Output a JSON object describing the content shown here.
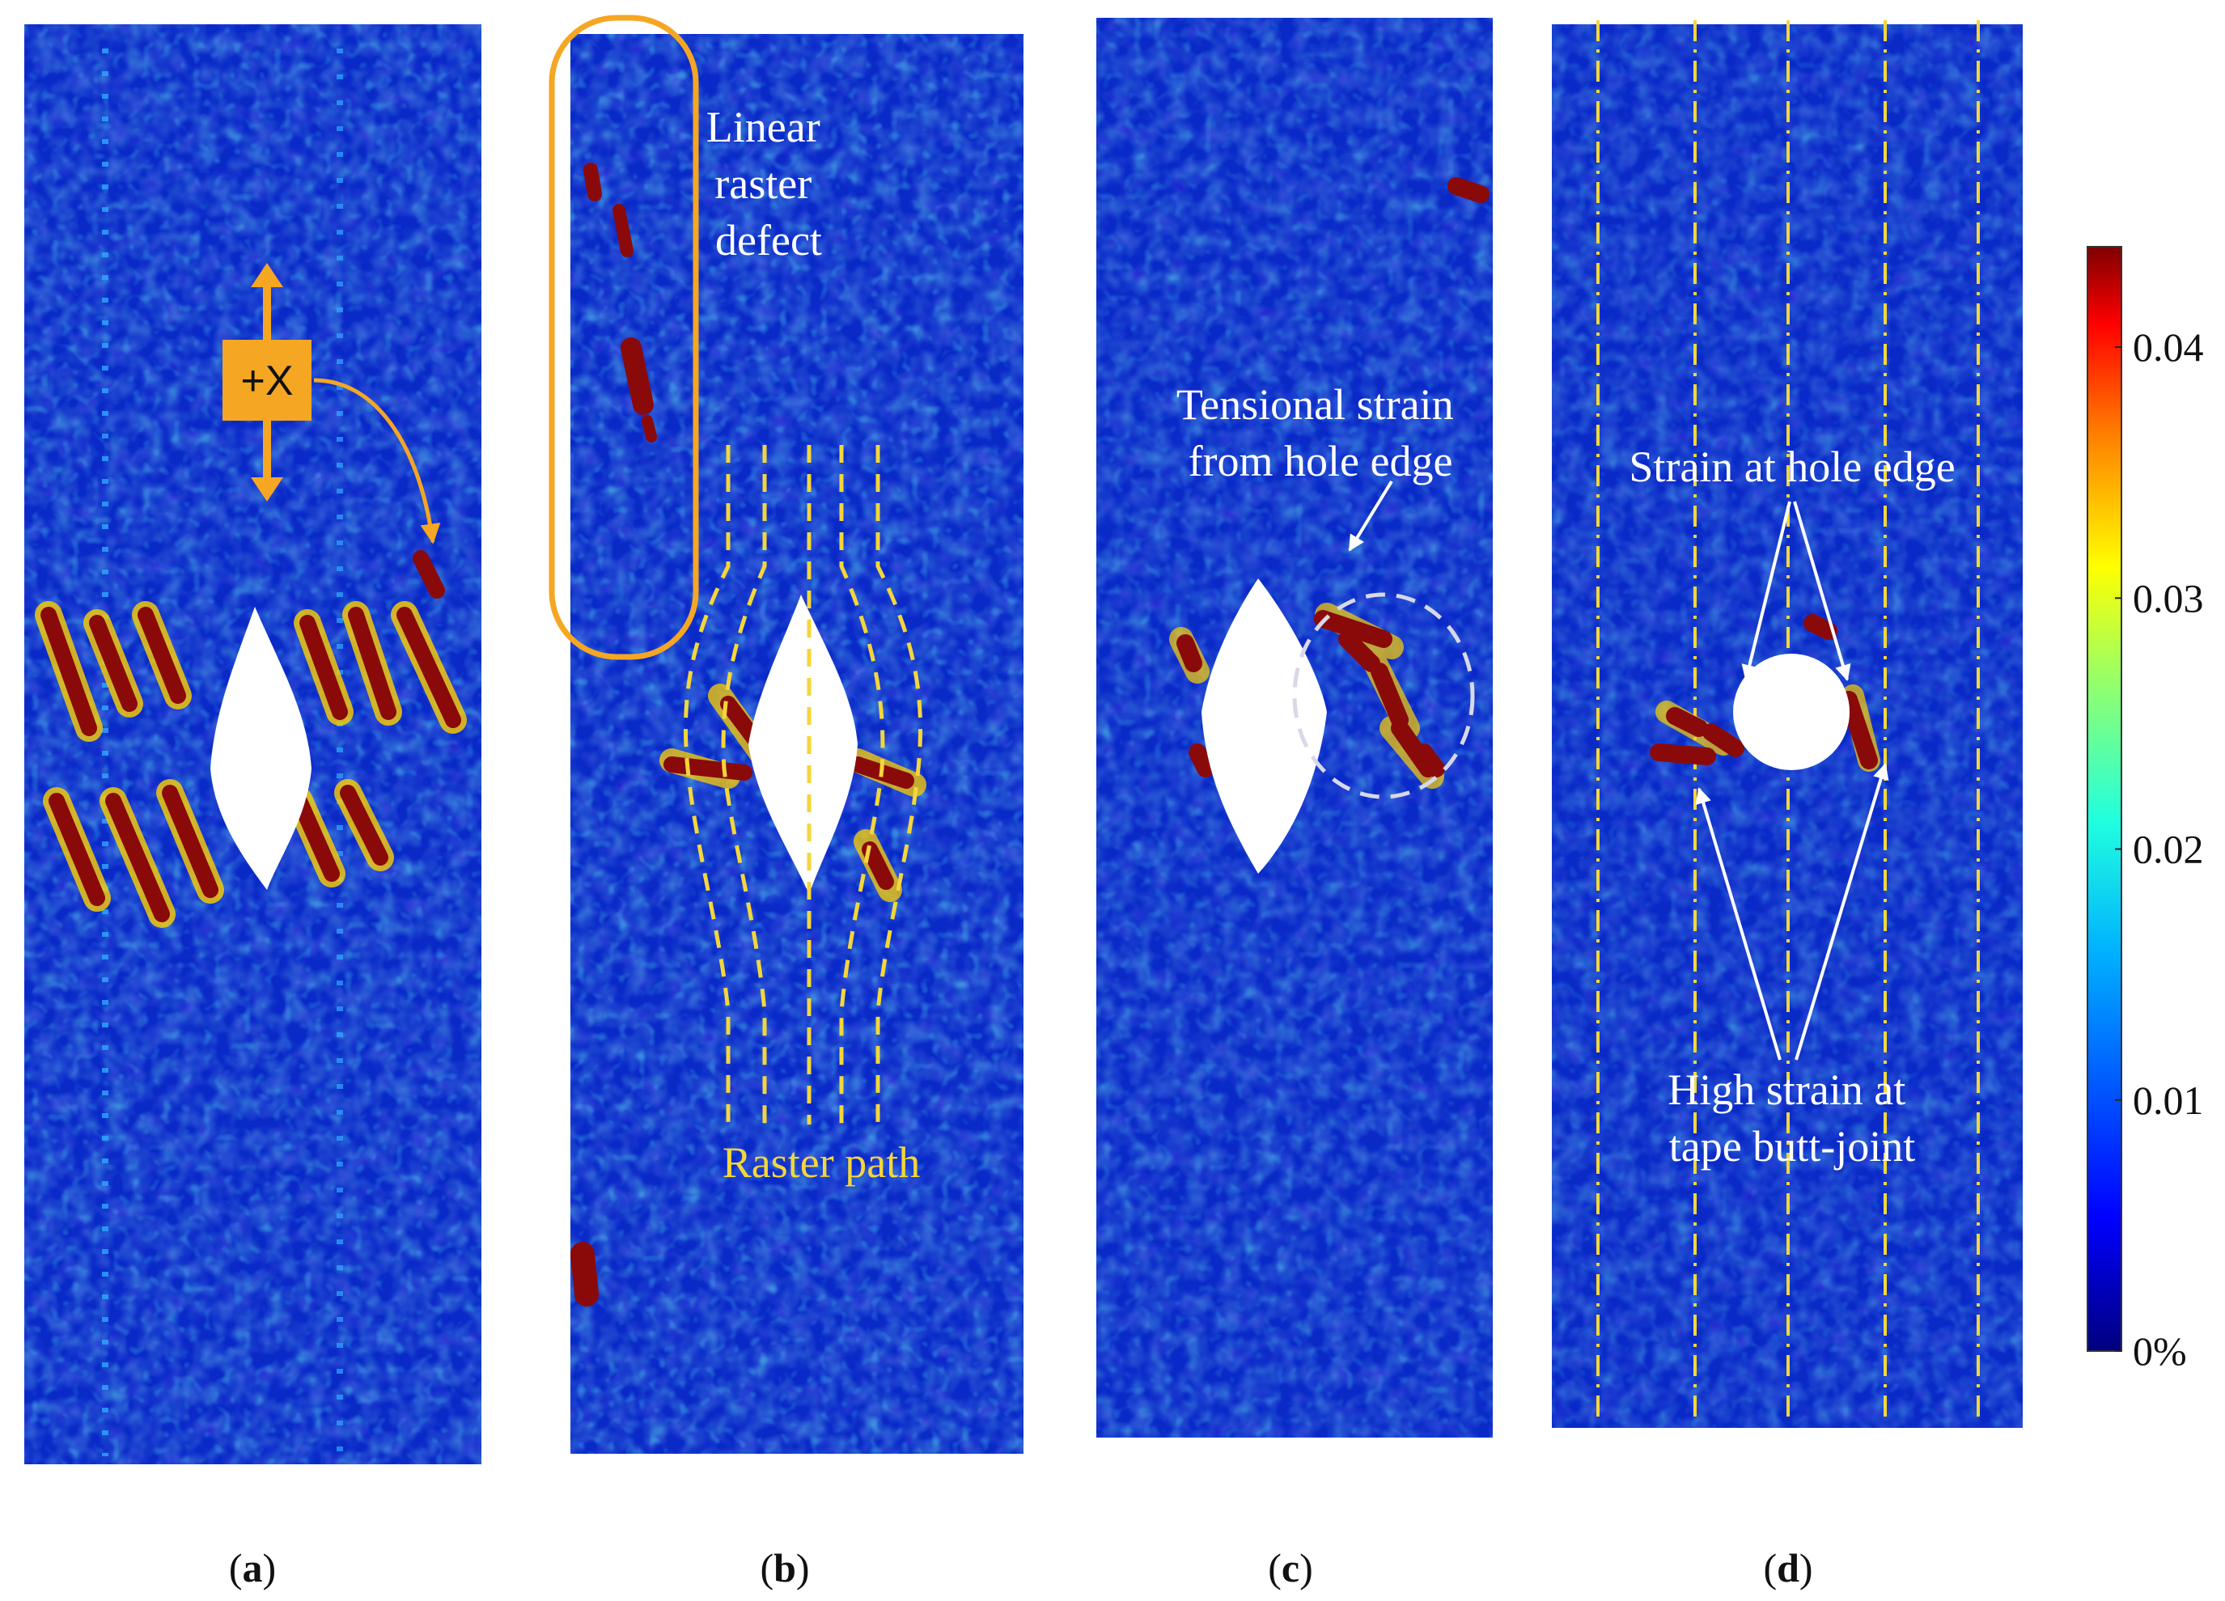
{
  "panels": [
    {
      "label": "a"
    },
    {
      "label": "b"
    },
    {
      "label": "c"
    },
    {
      "label": "d"
    }
  ],
  "annotations": {
    "direction": "+X",
    "linear_raster_defect": [
      "Linear",
      "raster",
      "defect"
    ],
    "raster_path": "Raster path",
    "tensional_strain": [
      "Tensional strain",
      "from hole edge"
    ],
    "strain_hole_edge": "Strain at hole edge",
    "high_strain": [
      "High strain at",
      "tape butt-joint"
    ]
  },
  "colorbar": {
    "ticks": [
      "0.04",
      "0.03",
      "0.02",
      "0.01",
      "0%"
    ],
    "tick_values": [
      0.04,
      0.03,
      0.02,
      0.01,
      0
    ],
    "range": [
      0,
      0.044
    ],
    "colors": [
      "#00007f",
      "#0000ff",
      "#007fff",
      "#00ffff",
      "#7fff7f",
      "#ffff00",
      "#ff7f00",
      "#ff0000",
      "#7f0000"
    ]
  },
  "colors": {
    "field_blue": "#0a2ac8",
    "hot": "#8a0a0a",
    "annotation_orange": "#f5a623",
    "raster_yellow": "#f4d63a"
  }
}
